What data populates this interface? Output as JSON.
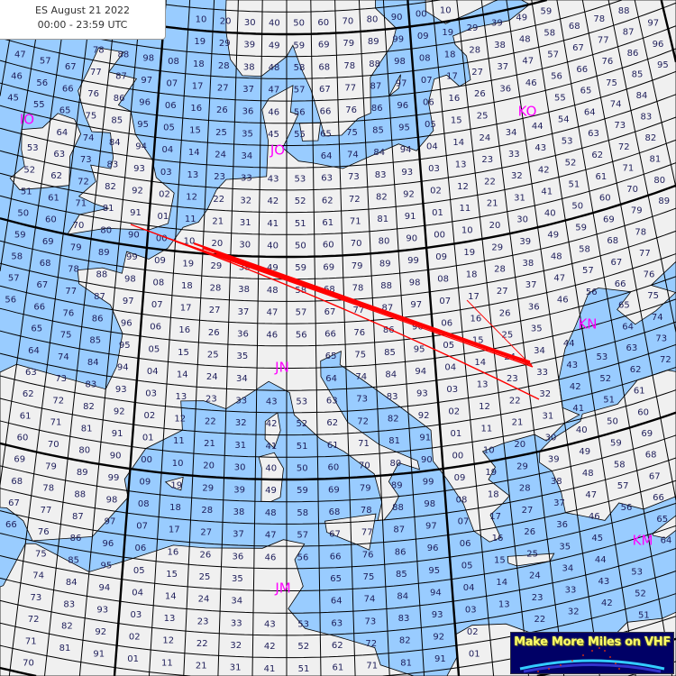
{
  "title": {
    "line1": "ES August 21 2022",
    "line2": "00:00 - 23:59 UTC"
  },
  "map": {
    "type": "Maidenhead locator grid map",
    "field_labels": [
      "IO",
      "JO",
      "KO",
      "JN",
      "KN",
      "JM",
      "KM"
    ],
    "colors": {
      "sea": "#99ccff",
      "land": "#f0f0f0",
      "grid": "#000000",
      "field_label": "#ff00ff",
      "square_number": "#1e1e5a",
      "path": "#ff0000"
    }
  },
  "logo": {
    "text": "Make More Miles on VHF",
    "background": "#000066",
    "text_color": "#ffff66"
  }
}
